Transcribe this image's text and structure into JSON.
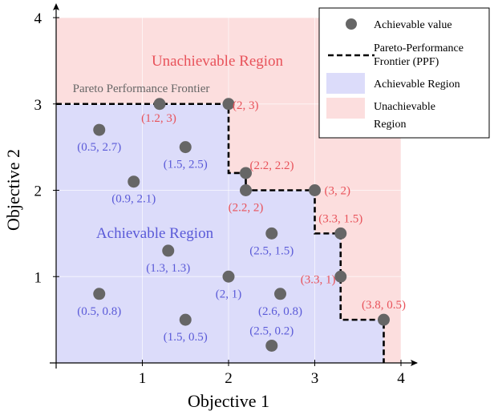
{
  "chart_data": {
    "type": "scatter",
    "title": "",
    "xlabel": "Objective 1",
    "ylabel": "Objective 2",
    "xlim": [
      0,
      4.0
    ],
    "ylim": [
      0,
      4.0
    ],
    "xticks": [
      "1",
      "2",
      "3",
      "4"
    ],
    "yticks": [
      "1",
      "2",
      "3",
      "4"
    ],
    "grid": true,
    "legend_position": "top-right",
    "series": [
      {
        "name": "Achievable value",
        "color": "#666666",
        "points": [
          {
            "x": 1.2,
            "y": 3,
            "label": "(1.2, 3)",
            "label_color": "#e8525a"
          },
          {
            "x": 2,
            "y": 3,
            "label": "(2, 3)",
            "label_color": "#e8525a"
          },
          {
            "x": 0.5,
            "y": 2.7,
            "label": "(0.5, 2.7)",
            "label_color": "#5a5ad8"
          },
          {
            "x": 1.5,
            "y": 2.5,
            "label": "(1.5, 2.5)",
            "label_color": "#5a5ad8"
          },
          {
            "x": 2.2,
            "y": 2.2,
            "label": "(2.2, 2.2)",
            "label_color": "#e8525a"
          },
          {
            "x": 0.9,
            "y": 2.1,
            "label": "(0.9, 2.1)",
            "label_color": "#5a5ad8"
          },
          {
            "x": 2.2,
            "y": 2,
            "label": "(2.2, 2)",
            "label_color": "#e8525a"
          },
          {
            "x": 3,
            "y": 2,
            "label": "(3, 2)",
            "label_color": "#e8525a"
          },
          {
            "x": 2.5,
            "y": 1.5,
            "label": "(2.5, 1.5)",
            "label_color": "#5a5ad8"
          },
          {
            "x": 3.3,
            "y": 1.5,
            "label": "(3.3, 1.5)",
            "label_color": "#e8525a"
          },
          {
            "x": 1.3,
            "y": 1.3,
            "label": "(1.3, 1.3)",
            "label_color": "#5a5ad8"
          },
          {
            "x": 2,
            "y": 1,
            "label": "(2, 1)",
            "label_color": "#5a5ad8"
          },
          {
            "x": 3.3,
            "y": 1,
            "label": "(3.3, 1)",
            "label_color": "#e8525a"
          },
          {
            "x": 0.5,
            "y": 0.8,
            "label": "(0.5, 0.8)",
            "label_color": "#5a5ad8"
          },
          {
            "x": 2.6,
            "y": 0.8,
            "label": "(2.6, 0.8)",
            "label_color": "#5a5ad8"
          },
          {
            "x": 3.8,
            "y": 0.5,
            "label": "(3.8, 0.5)",
            "label_color": "#e8525a"
          },
          {
            "x": 1.5,
            "y": 0.5,
            "label": "(1.5, 0.5)",
            "label_color": "#5a5ad8"
          },
          {
            "x": 2.5,
            "y": 0.2,
            "label": "(2.5, 0.2)",
            "label_color": "#5a5ad8"
          }
        ]
      },
      {
        "name": "Pareto-Performance Frontier (PPF)",
        "color": "#000000",
        "style": "dashed",
        "points": [
          {
            "x": 0,
            "y": 3
          },
          {
            "x": 2,
            "y": 3
          },
          {
            "x": 2,
            "y": 2.2
          },
          {
            "x": 2.2,
            "y": 2.2
          },
          {
            "x": 2.2,
            "y": 2
          },
          {
            "x": 3,
            "y": 2
          },
          {
            "x": 3,
            "y": 1.5
          },
          {
            "x": 3.3,
            "y": 1.5
          },
          {
            "x": 3.3,
            "y": 0.5
          },
          {
            "x": 3.8,
            "y": 0.5
          },
          {
            "x": 3.8,
            "y": 0
          }
        ]
      }
    ],
    "regions": [
      {
        "name": "Achievable Region",
        "color": "#dcdcfa"
      },
      {
        "name": "Unachievable Region",
        "color": "#fcdede"
      }
    ],
    "legend": [
      {
        "label": "Achievable value",
        "kind": "marker"
      },
      {
        "label": "Pareto-Performance Frontier (PPF)",
        "kind": "line"
      },
      {
        "label": "Achievable Region",
        "kind": "patch",
        "color": "#dcdcfa"
      },
      {
        "label": "Unachievable Region",
        "kind": "patch",
        "color": "#fcdede"
      }
    ],
    "annotations": [
      {
        "text": "Unachievable Region",
        "color": "#e8525a"
      },
      {
        "text": "Pareto Performance Frontier",
        "color": "#666666"
      },
      {
        "text": "Achievable Region",
        "color": "#5a5ad8"
      }
    ]
  }
}
